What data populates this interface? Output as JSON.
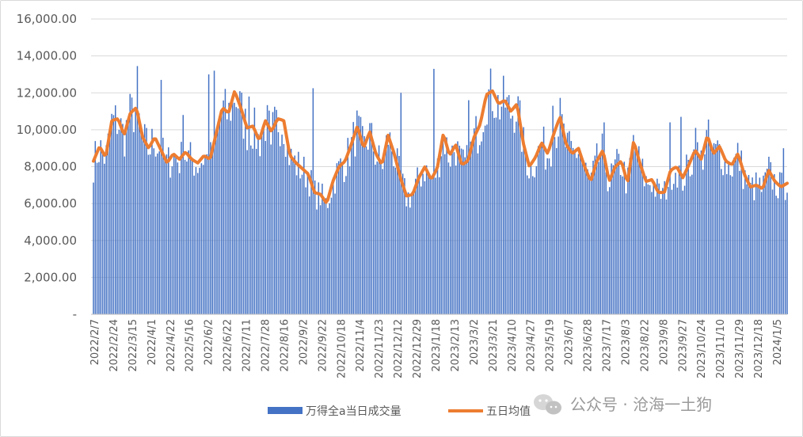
{
  "chart_data": {
    "type": "bar",
    "title": "",
    "xlabel": "",
    "ylabel": "",
    "ylim": [
      0,
      16000
    ],
    "y_tick_labels": [
      "-",
      "2,000.00",
      "4,000.00",
      "6,000.00",
      "8,000.00",
      "10,000.00",
      "12,000.00",
      "14,000.00",
      "16,000.00"
    ],
    "y_tick_values": [
      0,
      2000,
      4000,
      6000,
      8000,
      10000,
      12000,
      14000,
      16000
    ],
    "grid": "horizontal",
    "legend_position": "bottom",
    "x_tick_labels": [
      "2022/2/7",
      "2022/2/24",
      "2022/3/15",
      "2022/4/1",
      "2022/4/22",
      "2022/5/16",
      "2022/6/2",
      "2022/6/22",
      "2022/7/11",
      "2022/7/28",
      "2022/8/16",
      "2022/9/2",
      "2022/9/22",
      "2022/10/18",
      "2022/11/4",
      "2022/11/23",
      "2022/12/12",
      "2022/12/29",
      "2023/1/18",
      "2023/2/13",
      "2023/3/2",
      "2023/3/21",
      "2023/4/10",
      "2023/4/27",
      "2023/5/19",
      "2023/6/7",
      "2023/6/28",
      "2023/7/17",
      "2023/8/3",
      "2023/8/22",
      "2023/9/8",
      "2023/9/27",
      "2023/10/24",
      "2023/11/10",
      "2023/11/29",
      "2023/12/18",
      "2024/1/5"
    ],
    "ma_anchors": [
      8300,
      9100,
      8500,
      10500,
      10600,
      9700,
      10900,
      11200,
      9600,
      9000,
      9600,
      8900,
      8200,
      8700,
      8400,
      8800,
      8400,
      8200,
      8600,
      8400,
      9800,
      11200,
      10900,
      12100,
      11200,
      10100,
      10200,
      9400,
      10500,
      9900,
      10600,
      10500,
      8600,
      8200,
      7900,
      7600,
      6600,
      6500,
      6000,
      7200,
      8000,
      8300,
      9200,
      10200,
      9000,
      9900,
      8700,
      8100,
      9700,
      8700,
      7400,
      6400,
      6500,
      7400,
      8000,
      7300,
      7900,
      9800,
      8600,
      9200,
      8100,
      8300,
      9600,
      10300,
      11900,
      12100,
      11400,
      11600,
      11000,
      11400,
      9300,
      8000,
      8500,
      9300,
      8700,
      9800,
      10700,
      9200,
      8700,
      9000,
      8000,
      7200,
      8300,
      8900,
      7200,
      8000,
      8300,
      7100,
      9400,
      8200,
      7200,
      7300,
      6600,
      6600,
      7800,
      8000,
      7400,
      8100,
      8900,
      8400,
      9700,
      8700,
      9100,
      8300,
      8100,
      8700,
      7600,
      6900,
      7000,
      6800,
      7800,
      7200,
      6900,
      7100
    ],
    "series": [
      {
        "name": "万得全a当日成交量",
        "type": "bar",
        "color": "#4472c4",
        "peaks": [
          [
            24,
            13450
          ],
          [
            37,
            12700
          ],
          [
            49,
            10800
          ],
          [
            63,
            13000
          ],
          [
            66,
            13200
          ],
          [
            85,
            11800
          ],
          [
            97,
            9200
          ],
          [
            120,
            12250
          ],
          [
            168,
            12000
          ],
          [
            186,
            13300
          ],
          [
            205,
            11600
          ],
          [
            251,
            11300
          ],
          [
            279,
            10400
          ],
          [
            315,
            10400
          ],
          [
            321,
            10700
          ],
          [
            329,
            10100
          ],
          [
            377,
            9000
          ]
        ]
      },
      {
        "name": "五日均值",
        "type": "line",
        "color": "#ed7d31"
      }
    ]
  },
  "legend": {
    "bar_label": "万得全a当日成交量",
    "line_label": "五日均值"
  },
  "watermark": {
    "text": "公众号 · 沧海一土狗",
    "icon": "wechat-icon"
  }
}
